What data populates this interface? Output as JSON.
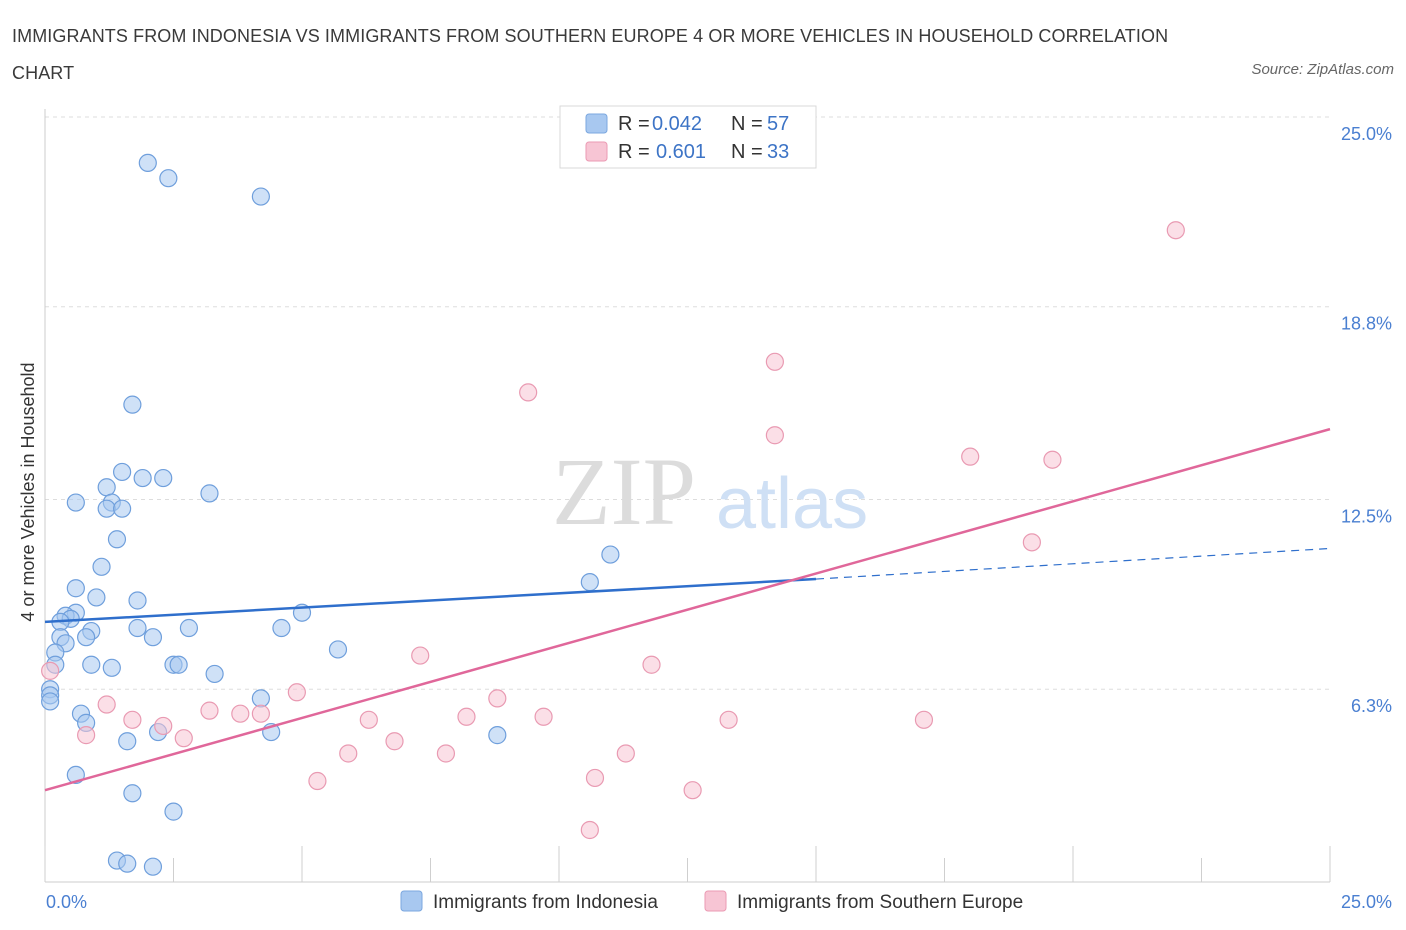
{
  "title": "IMMIGRANTS FROM INDONESIA VS IMMIGRANTS FROM SOUTHERN EUROPE 4 OR MORE VEHICLES IN HOUSEHOLD CORRELATION CHART",
  "source": "Source: ZipAtlas.com",
  "watermark": {
    "zip": "ZIP",
    "atlas": "atlas"
  },
  "legend": {
    "rows": [
      {
        "r_label": "R =",
        "r_value": "0.042",
        "n_label": "N =",
        "n_value": "57",
        "color": "#a8c8f0",
        "border": "#7ba7df"
      },
      {
        "r_label": "R =",
        "r_value": "0.601",
        "n_label": "N =",
        "n_value": "33",
        "color": "#f7c5d4",
        "border": "#eb9ab3"
      }
    ]
  },
  "bottom_legend": [
    {
      "label": "Immigrants from Indonesia",
      "color": "#a8c8f0",
      "border": "#7ba7df"
    },
    {
      "label": "Immigrants from Southern Europe",
      "color": "#f7c5d4",
      "border": "#eb9ab3"
    }
  ],
  "chart_data": {
    "type": "scatter",
    "title": "IMMIGRANTS FROM INDONESIA VS IMMIGRANTS FROM SOUTHERN EUROPE 4 OR MORE VEHICLES IN HOUSEHOLD CORRELATION CHART",
    "xlabel": "",
    "ylabel": "4 or more Vehicles in Household",
    "xlim": [
      0,
      25
    ],
    "ylim": [
      0,
      25
    ],
    "x_tick_labels": [
      "0.0%",
      "25.0%"
    ],
    "y_ticks": [
      6.3,
      12.5,
      18.8,
      25.0
    ],
    "y_tick_labels": [
      "6.3%",
      "12.5%",
      "18.8%",
      "25.0%"
    ],
    "grid": true,
    "legend_position": "top-center",
    "series": [
      {
        "name": "Immigrants from Indonesia",
        "color": "#a8c8f0",
        "stroke": "#6f9fdc",
        "line_color": "#2f6fcc",
        "trend": {
          "x0": 0,
          "y0": 8.5,
          "x1": 15,
          "y1": 9.9,
          "dashed_to_x": 25,
          "dashed_to_y": 10.9
        },
        "points": [
          [
            2.0,
            23.5
          ],
          [
            2.4,
            23.0
          ],
          [
            4.2,
            22.4
          ],
          [
            1.7,
            15.6
          ],
          [
            1.5,
            13.4
          ],
          [
            1.9,
            13.2
          ],
          [
            2.3,
            13.2
          ],
          [
            1.2,
            12.9
          ],
          [
            0.6,
            12.4
          ],
          [
            1.3,
            12.4
          ],
          [
            1.2,
            12.2
          ],
          [
            1.5,
            12.2
          ],
          [
            3.2,
            12.7
          ],
          [
            1.4,
            11.2
          ],
          [
            1.1,
            10.3
          ],
          [
            0.6,
            9.6
          ],
          [
            1.0,
            9.3
          ],
          [
            1.8,
            9.2
          ],
          [
            0.6,
            8.8
          ],
          [
            0.4,
            8.7
          ],
          [
            0.5,
            8.6
          ],
          [
            0.3,
            8.5
          ],
          [
            5.0,
            8.8
          ],
          [
            0.9,
            8.2
          ],
          [
            0.8,
            8.0
          ],
          [
            0.3,
            8.0
          ],
          [
            0.4,
            7.8
          ],
          [
            1.8,
            8.3
          ],
          [
            2.1,
            8.0
          ],
          [
            2.8,
            8.3
          ],
          [
            4.6,
            8.3
          ],
          [
            0.2,
            7.5
          ],
          [
            0.2,
            7.1
          ],
          [
            0.9,
            7.1
          ],
          [
            1.3,
            7.0
          ],
          [
            2.5,
            7.1
          ],
          [
            2.6,
            7.1
          ],
          [
            3.3,
            6.8
          ],
          [
            5.7,
            7.6
          ],
          [
            0.1,
            6.3
          ],
          [
            0.1,
            6.1
          ],
          [
            0.1,
            5.9
          ],
          [
            4.2,
            6.0
          ],
          [
            0.7,
            5.5
          ],
          [
            0.8,
            5.2
          ],
          [
            1.6,
            4.6
          ],
          [
            2.2,
            4.9
          ],
          [
            4.4,
            4.9
          ],
          [
            8.8,
            4.8
          ],
          [
            11.0,
            10.7
          ],
          [
            10.6,
            9.8
          ],
          [
            0.6,
            3.5
          ],
          [
            1.7,
            2.9
          ],
          [
            2.5,
            2.3
          ],
          [
            1.4,
            0.7
          ],
          [
            1.6,
            0.6
          ],
          [
            2.1,
            0.5
          ]
        ]
      },
      {
        "name": "Immigrants from Southern Europe",
        "color": "#f7c5d4",
        "stroke": "#e99ab2",
        "line_color": "#e0679a",
        "trend": {
          "x0": 0,
          "y0": 3.0,
          "x1": 25,
          "y1": 14.8
        },
        "points": [
          [
            22.0,
            21.3
          ],
          [
            14.2,
            17.0
          ],
          [
            9.4,
            16.0
          ],
          [
            14.2,
            14.6
          ],
          [
            18.0,
            13.9
          ],
          [
            19.6,
            13.8
          ],
          [
            19.2,
            11.1
          ],
          [
            7.3,
            7.4
          ],
          [
            11.8,
            7.1
          ],
          [
            0.1,
            6.9
          ],
          [
            4.9,
            6.2
          ],
          [
            1.2,
            5.8
          ],
          [
            3.2,
            5.6
          ],
          [
            3.8,
            5.5
          ],
          [
            4.2,
            5.5
          ],
          [
            1.7,
            5.3
          ],
          [
            2.3,
            5.1
          ],
          [
            6.3,
            5.3
          ],
          [
            8.2,
            5.4
          ],
          [
            8.8,
            6.0
          ],
          [
            9.7,
            5.4
          ],
          [
            13.3,
            5.3
          ],
          [
            17.1,
            5.3
          ],
          [
            0.8,
            4.8
          ],
          [
            2.7,
            4.7
          ],
          [
            6.8,
            4.6
          ],
          [
            5.9,
            4.2
          ],
          [
            7.8,
            4.2
          ],
          [
            11.3,
            4.2
          ],
          [
            5.3,
            3.3
          ],
          [
            10.7,
            3.4
          ],
          [
            12.6,
            3.0
          ],
          [
            10.6,
            1.7
          ]
        ]
      }
    ]
  }
}
